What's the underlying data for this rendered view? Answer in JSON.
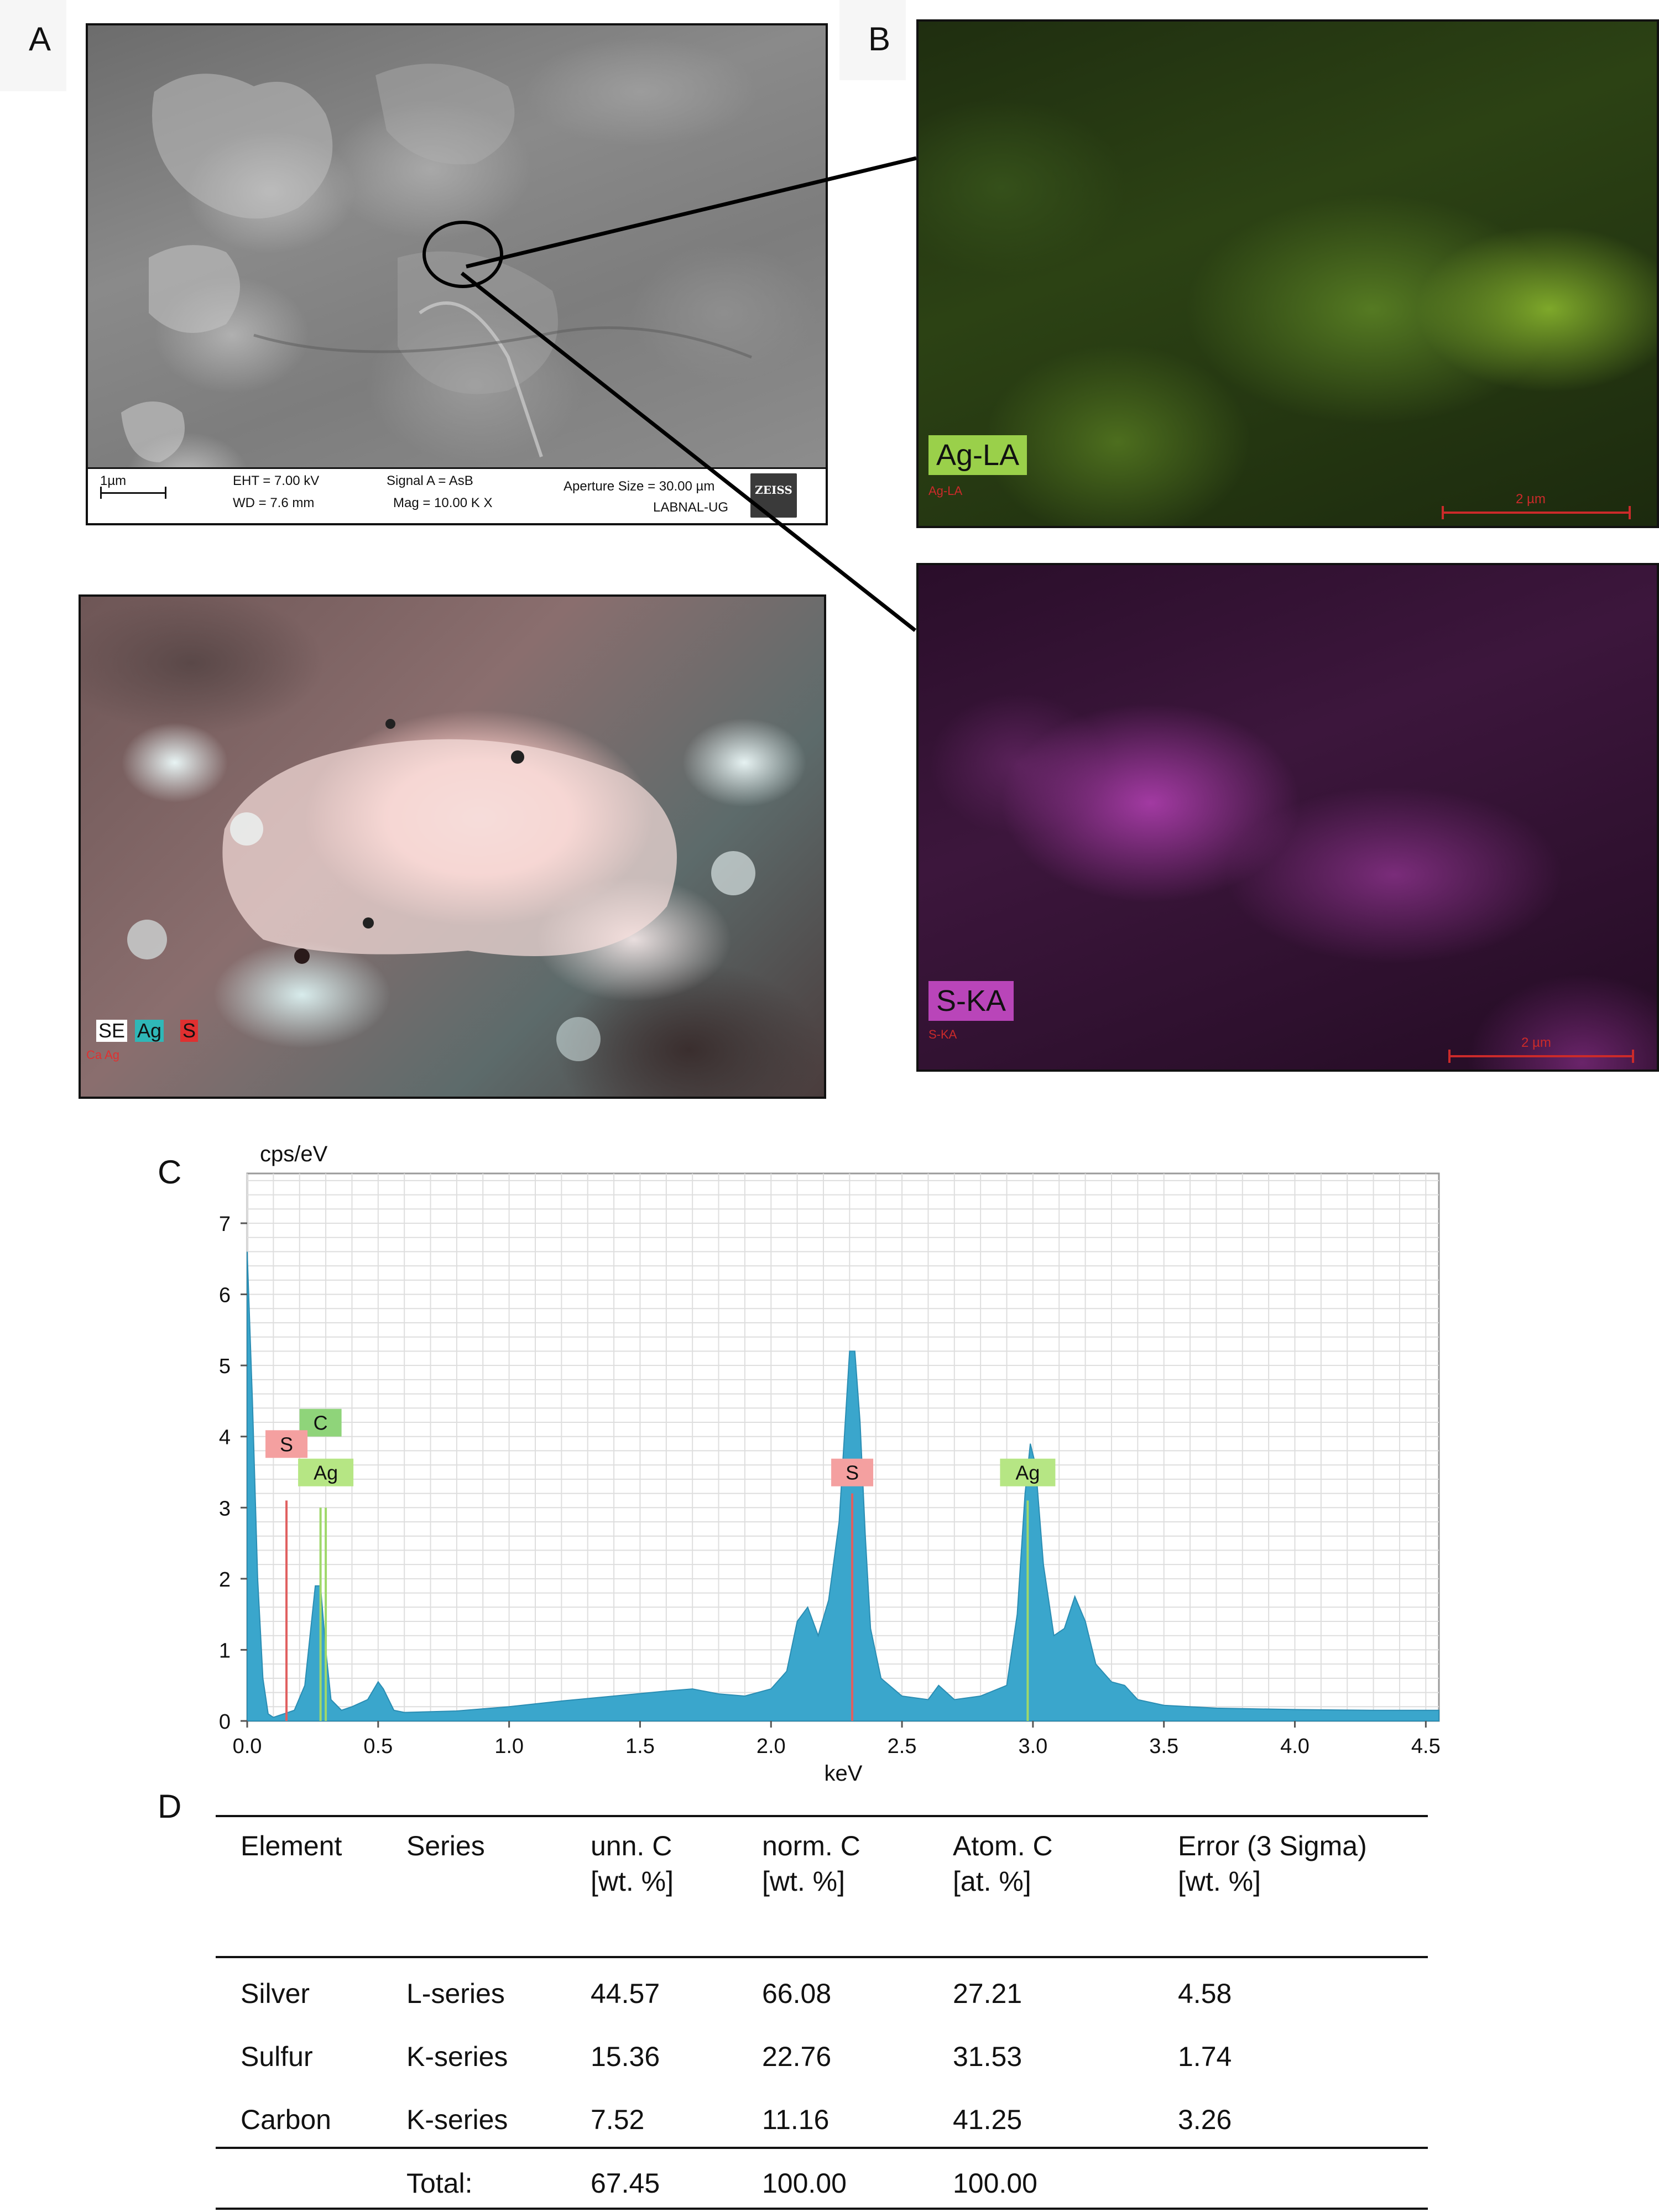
{
  "panels": {
    "a": "A",
    "b": "B",
    "c": "C",
    "d": "D"
  },
  "sem": {
    "scale": "1µm",
    "eht": "EHT = 7.00 kV",
    "wd": "WD = 7.6 mm",
    "signal": "Signal A = AsB",
    "mag": "Mag = 10.00 K X",
    "aperture": "Aperture Size = 30.00 µm",
    "lab": "LABNAL-UG",
    "logo": "ZEISS"
  },
  "composite": {
    "legend": [
      "SE",
      "Ag",
      "S"
    ],
    "small": "Ca Ag"
  },
  "maps": {
    "ag_label": "Ag-LA",
    "ag_small": "Ag-LA",
    "s_label": "S-KA",
    "s_small": "S-KA",
    "scale": "2 µm"
  },
  "colors": {
    "spectrum_fill": "#3aa6cc",
    "s_marker": "#e06060",
    "ag_marker": "#9fd86a",
    "c_tag": "#8fd47a",
    "s_tag": "#f4a0a0",
    "ag_tag": "#b6e684"
  },
  "chart_data": {
    "type": "area",
    "ylabel": "cps/eV",
    "xlabel": "keV",
    "xlim": [
      0,
      4.55
    ],
    "ylim": [
      0,
      7.7
    ],
    "xticks": [
      "0.0",
      "0.5",
      "1.0",
      "1.5",
      "2.0",
      "2.5",
      "3.0",
      "3.5",
      "4.0",
      "4.5"
    ],
    "yticks": [
      "0",
      "1",
      "2",
      "3",
      "4",
      "5",
      "6",
      "7"
    ],
    "grid": true,
    "x": [
      0.0,
      0.02,
      0.04,
      0.06,
      0.08,
      0.1,
      0.14,
      0.18,
      0.22,
      0.24,
      0.26,
      0.28,
      0.3,
      0.32,
      0.36,
      0.4,
      0.46,
      0.5,
      0.52,
      0.56,
      0.6,
      0.8,
      1.0,
      1.2,
      1.4,
      1.6,
      1.7,
      1.8,
      1.9,
      2.0,
      2.06,
      2.1,
      2.14,
      2.18,
      2.22,
      2.26,
      2.28,
      2.3,
      2.32,
      2.34,
      2.36,
      2.38,
      2.42,
      2.5,
      2.6,
      2.64,
      2.7,
      2.8,
      2.9,
      2.94,
      2.97,
      2.99,
      3.01,
      3.04,
      3.08,
      3.12,
      3.16,
      3.2,
      3.24,
      3.3,
      3.35,
      3.4,
      3.5,
      3.7,
      4.0,
      4.3,
      4.55
    ],
    "y": [
      6.6,
      4.5,
      2.0,
      0.6,
      0.1,
      0.05,
      0.1,
      0.15,
      0.5,
      1.2,
      1.9,
      1.9,
      1.0,
      0.3,
      0.15,
      0.2,
      0.3,
      0.55,
      0.45,
      0.15,
      0.12,
      0.14,
      0.2,
      0.28,
      0.35,
      0.42,
      0.45,
      0.38,
      0.35,
      0.45,
      0.7,
      1.4,
      1.6,
      1.2,
      1.7,
      2.8,
      4.0,
      5.2,
      5.2,
      4.2,
      2.6,
      1.3,
      0.6,
      0.35,
      0.3,
      0.5,
      0.3,
      0.35,
      0.5,
      1.5,
      3.2,
      3.9,
      3.6,
      2.2,
      1.2,
      1.3,
      1.75,
      1.4,
      0.8,
      0.55,
      0.5,
      0.3,
      0.22,
      0.18,
      0.16,
      0.15,
      0.15
    ],
    "peak_labels": [
      {
        "text": "C",
        "x": 0.28,
        "y": 4.0,
        "marker_height": 3.0,
        "color": "#8fd47a"
      },
      {
        "text": "S",
        "x": 0.15,
        "y": 3.7,
        "marker_height": 3.1,
        "color": "#f4a0a0"
      },
      {
        "text": "Ag",
        "x": 0.3,
        "y": 3.3,
        "marker_height": 3.0,
        "color": "#b6e684"
      },
      {
        "text": "S",
        "x": 2.31,
        "y": 3.3,
        "marker_height": 3.2,
        "color": "#f4a0a0"
      },
      {
        "text": "Ag",
        "x": 2.98,
        "y": 3.3,
        "marker_height": 3.1,
        "color": "#b6e684"
      }
    ]
  },
  "table": {
    "headers": [
      {
        "l1": "Element",
        "l2": ""
      },
      {
        "l1": "Series",
        "l2": ""
      },
      {
        "l1": "unn. C",
        "l2": "[wt. %]"
      },
      {
        "l1": "norm. C",
        "l2": "[wt. %]"
      },
      {
        "l1": "Atom. C",
        "l2": "[at. %]"
      },
      {
        "l1": "Error (3 Sigma)",
        "l2": "[wt. %]"
      }
    ],
    "rows": [
      [
        "Silver",
        "L-series",
        "44.57",
        "66.08",
        "27.21",
        "4.58"
      ],
      [
        "Sulfur",
        "K-series",
        "15.36",
        "22.76",
        "31.53",
        "1.74"
      ],
      [
        "Carbon",
        "K-series",
        "7.52",
        "11.16",
        "41.25",
        "3.26"
      ]
    ],
    "total": [
      "",
      "Total:",
      "67.45",
      "100.00",
      "100.00",
      ""
    ]
  }
}
